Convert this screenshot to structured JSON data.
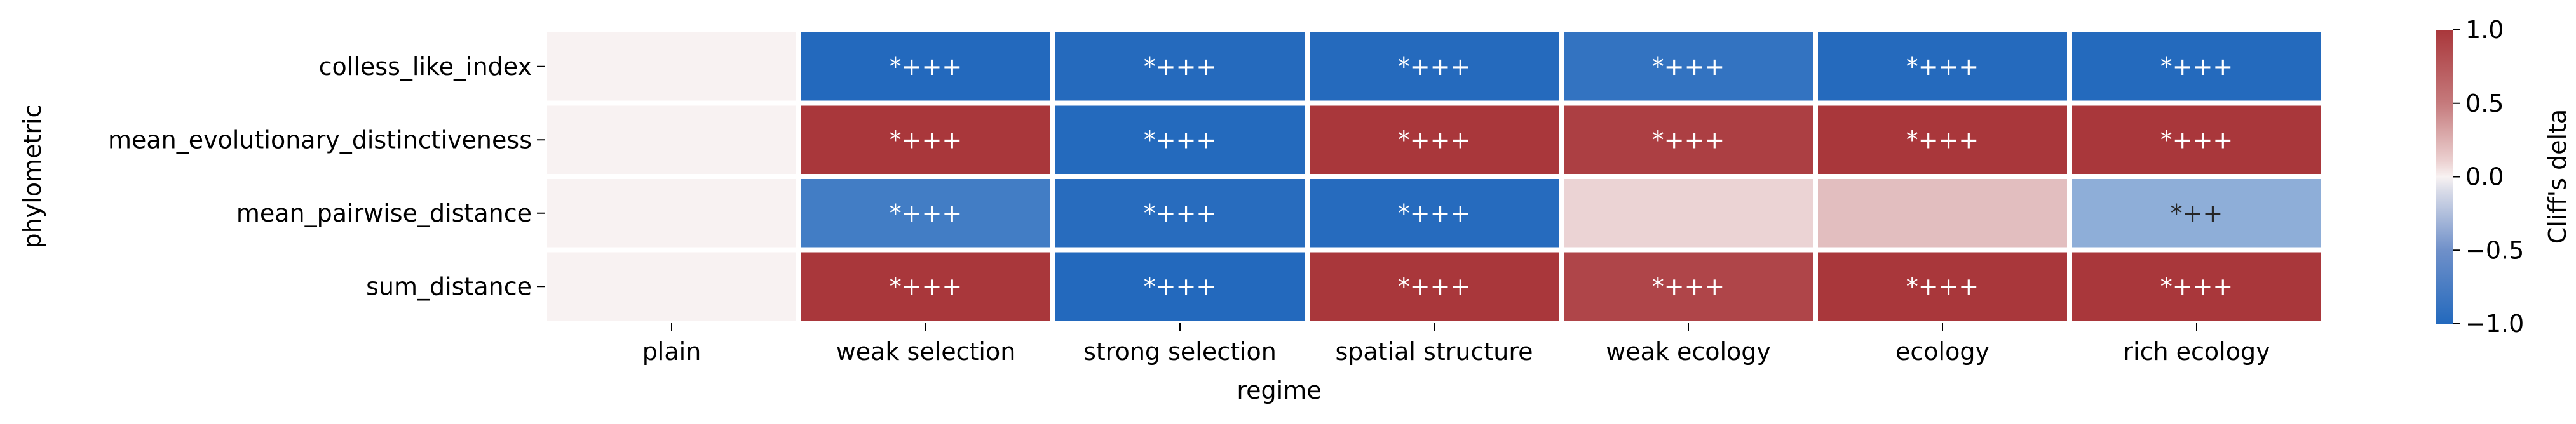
{
  "chart_data": {
    "type": "heatmap",
    "xlabel": "regime",
    "ylabel": "phylometric",
    "x_categories": [
      "plain",
      "weak selection",
      "strong selection",
      "spatial structure",
      "weak ecology",
      "ecology",
      "rich ecology"
    ],
    "y_categories": [
      "colless_like_index",
      "mean_evolutionary_distinctiveness",
      "mean_pairwise_distance",
      "sum_distance"
    ],
    "values": [
      [
        0.0,
        -1.0,
        -0.95,
        -0.95,
        -0.8,
        -0.95,
        -0.97
      ],
      [
        0.0,
        1.0,
        -0.97,
        1.0,
        0.93,
        1.0,
        1.0
      ],
      [
        0.0,
        -0.7,
        -0.9,
        -0.93,
        0.05,
        0.12,
        -0.35
      ],
      [
        0.0,
        1.0,
        -1.0,
        1.0,
        0.88,
        1.0,
        1.0
      ]
    ],
    "annotations": [
      [
        "",
        "*+++",
        "*+++",
        "*+++",
        "*+++",
        "*+++",
        "*+++"
      ],
      [
        "",
        "*+++",
        "*+++",
        "*+++",
        "*+++",
        "*+++",
        "*+++"
      ],
      [
        "",
        "*+++",
        "*+++",
        "*+++",
        "",
        "",
        "*++"
      ],
      [
        "",
        "*+++",
        "*+++",
        "*+++",
        "*+++",
        "*+++",
        "*+++"
      ]
    ],
    "colorbar": {
      "label": "Cliff's delta",
      "vmin": -1.0,
      "vmax": 1.0,
      "ticks": [
        -1.0,
        -0.5,
        0.0,
        0.5,
        1.0
      ],
      "tick_labels": [
        "−1.0",
        "−0.5",
        "0.0",
        "0.5",
        "1.0"
      ],
      "colormap": "vlag",
      "low_color": "#2369bd",
      "mid_color": "#f8f2f2",
      "high_color": "#a9373b"
    },
    "grid": false,
    "legend": "colorbar-right"
  }
}
